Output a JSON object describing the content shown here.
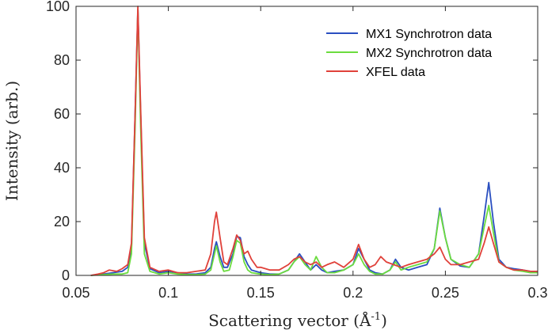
{
  "chart_data": {
    "type": "line",
    "title": "",
    "xlabel": "Scattering vector (Å",
    "xlabel_sup": "-1",
    "xlabel_close": ")",
    "ylabel": "Intensity (arb.)",
    "xlim": [
      0.05,
      0.3
    ],
    "ylim": [
      0,
      100
    ],
    "xticks": [
      0.05,
      0.1,
      0.15,
      0.2,
      0.25,
      0.3
    ],
    "xtick_labels": [
      "0.05",
      "0.1",
      "0.15",
      "0.2",
      "0.25",
      "0.3"
    ],
    "yticks": [
      0,
      20,
      40,
      60,
      80,
      100
    ],
    "ytick_labels": [
      "0",
      "20",
      "40",
      "60",
      "80",
      "100"
    ],
    "legend_position": "top-right",
    "series": [
      {
        "name": "MX1 Synchrotron data",
        "color": "#2a4fc0",
        "points": [
          [
            0.058,
            0
          ],
          [
            0.065,
            0.5
          ],
          [
            0.07,
            1
          ],
          [
            0.075,
            1.5
          ],
          [
            0.078,
            3
          ],
          [
            0.08,
            10
          ],
          [
            0.082,
            60
          ],
          [
            0.0835,
            99
          ],
          [
            0.085,
            60
          ],
          [
            0.087,
            12
          ],
          [
            0.09,
            2.5
          ],
          [
            0.095,
            1
          ],
          [
            0.1,
            1.5
          ],
          [
            0.105,
            1
          ],
          [
            0.11,
            0.5
          ],
          [
            0.115,
            0.5
          ],
          [
            0.12,
            1
          ],
          [
            0.123,
            3
          ],
          [
            0.125,
            10
          ],
          [
            0.126,
            12.5
          ],
          [
            0.128,
            7
          ],
          [
            0.13,
            3
          ],
          [
            0.132,
            3
          ],
          [
            0.135,
            8
          ],
          [
            0.137,
            14.5
          ],
          [
            0.139,
            14
          ],
          [
            0.141,
            7
          ],
          [
            0.143,
            4
          ],
          [
            0.145,
            2
          ],
          [
            0.15,
            1
          ],
          [
            0.155,
            0.5
          ],
          [
            0.16,
            0.5
          ],
          [
            0.165,
            2
          ],
          [
            0.168,
            5
          ],
          [
            0.171,
            8
          ],
          [
            0.174,
            5
          ],
          [
            0.177,
            2
          ],
          [
            0.18,
            4
          ],
          [
            0.183,
            2
          ],
          [
            0.186,
            1
          ],
          [
            0.19,
            1.5
          ],
          [
            0.195,
            2
          ],
          [
            0.2,
            4
          ],
          [
            0.203,
            10
          ],
          [
            0.206,
            6
          ],
          [
            0.209,
            2
          ],
          [
            0.212,
            1
          ],
          [
            0.216,
            0.5
          ],
          [
            0.22,
            2
          ],
          [
            0.223,
            6
          ],
          [
            0.226,
            3
          ],
          [
            0.23,
            2
          ],
          [
            0.235,
            3
          ],
          [
            0.24,
            4
          ],
          [
            0.244,
            10
          ],
          [
            0.247,
            25
          ],
          [
            0.25,
            14
          ],
          [
            0.253,
            6
          ],
          [
            0.258,
            3.5
          ],
          [
            0.263,
            3
          ],
          [
            0.268,
            8
          ],
          [
            0.271,
            22
          ],
          [
            0.2735,
            34.5
          ],
          [
            0.276,
            20
          ],
          [
            0.279,
            6
          ],
          [
            0.283,
            3
          ],
          [
            0.287,
            2.5
          ],
          [
            0.292,
            2
          ],
          [
            0.296,
            1.5
          ],
          [
            0.3,
            1
          ]
        ]
      },
      {
        "name": "MX2 Synchrotron data",
        "color": "#6bdc3e",
        "points": [
          [
            0.058,
            0
          ],
          [
            0.065,
            0.3
          ],
          [
            0.07,
            0.5
          ],
          [
            0.075,
            0.5
          ],
          [
            0.078,
            1
          ],
          [
            0.08,
            8
          ],
          [
            0.082,
            55
          ],
          [
            0.0835,
            99
          ],
          [
            0.085,
            55
          ],
          [
            0.087,
            8
          ],
          [
            0.09,
            1.5
          ],
          [
            0.095,
            0.5
          ],
          [
            0.1,
            1
          ],
          [
            0.105,
            0.5
          ],
          [
            0.11,
            0.3
          ],
          [
            0.115,
            0.3
          ],
          [
            0.12,
            0.5
          ],
          [
            0.123,
            2
          ],
          [
            0.125,
            8
          ],
          [
            0.126,
            11
          ],
          [
            0.128,
            5
          ],
          [
            0.13,
            1.5
          ],
          [
            0.133,
            2
          ],
          [
            0.135,
            7
          ],
          [
            0.137,
            13
          ],
          [
            0.139,
            12
          ],
          [
            0.141,
            5
          ],
          [
            0.143,
            2
          ],
          [
            0.145,
            1
          ],
          [
            0.15,
            0.5
          ],
          [
            0.155,
            0.3
          ],
          [
            0.16,
            0.5
          ],
          [
            0.165,
            2
          ],
          [
            0.168,
            5
          ],
          [
            0.171,
            7
          ],
          [
            0.174,
            4
          ],
          [
            0.177,
            2
          ],
          [
            0.18,
            7
          ],
          [
            0.183,
            3
          ],
          [
            0.186,
            1
          ],
          [
            0.19,
            1
          ],
          [
            0.195,
            2
          ],
          [
            0.2,
            4
          ],
          [
            0.203,
            8
          ],
          [
            0.206,
            4
          ],
          [
            0.209,
            1.5
          ],
          [
            0.212,
            0.5
          ],
          [
            0.216,
            0.5
          ],
          [
            0.22,
            2
          ],
          [
            0.223,
            5
          ],
          [
            0.226,
            2
          ],
          [
            0.23,
            3
          ],
          [
            0.235,
            4
          ],
          [
            0.24,
            5
          ],
          [
            0.244,
            10
          ],
          [
            0.247,
            24
          ],
          [
            0.25,
            14
          ],
          [
            0.253,
            6
          ],
          [
            0.258,
            4
          ],
          [
            0.263,
            3
          ],
          [
            0.268,
            8
          ],
          [
            0.271,
            18
          ],
          [
            0.2735,
            26
          ],
          [
            0.276,
            16
          ],
          [
            0.279,
            5
          ],
          [
            0.283,
            3
          ],
          [
            0.287,
            2
          ],
          [
            0.292,
            1.5
          ],
          [
            0.296,
            1
          ],
          [
            0.3,
            1
          ]
        ]
      },
      {
        "name": "XFEL data",
        "color": "#e0413a",
        "points": [
          [
            0.058,
            0
          ],
          [
            0.062,
            0.5
          ],
          [
            0.065,
            1
          ],
          [
            0.068,
            2
          ],
          [
            0.072,
            1.5
          ],
          [
            0.075,
            2.5
          ],
          [
            0.078,
            4
          ],
          [
            0.08,
            12
          ],
          [
            0.082,
            60
          ],
          [
            0.0835,
            100
          ],
          [
            0.085,
            62
          ],
          [
            0.087,
            14
          ],
          [
            0.09,
            3
          ],
          [
            0.095,
            1.5
          ],
          [
            0.1,
            2
          ],
          [
            0.105,
            1
          ],
          [
            0.11,
            1
          ],
          [
            0.115,
            1.5
          ],
          [
            0.12,
            2
          ],
          [
            0.123,
            8
          ],
          [
            0.125,
            20
          ],
          [
            0.126,
            23.5
          ],
          [
            0.128,
            14
          ],
          [
            0.13,
            5
          ],
          [
            0.132,
            4
          ],
          [
            0.135,
            10
          ],
          [
            0.137,
            15
          ],
          [
            0.139,
            13
          ],
          [
            0.141,
            8
          ],
          [
            0.143,
            9
          ],
          [
            0.145,
            6
          ],
          [
            0.148,
            3
          ],
          [
            0.15,
            3
          ],
          [
            0.155,
            2
          ],
          [
            0.16,
            2
          ],
          [
            0.165,
            4
          ],
          [
            0.168,
            6
          ],
          [
            0.171,
            7
          ],
          [
            0.174,
            5
          ],
          [
            0.177,
            4
          ],
          [
            0.18,
            5
          ],
          [
            0.183,
            3
          ],
          [
            0.186,
            4
          ],
          [
            0.19,
            5
          ],
          [
            0.195,
            3
          ],
          [
            0.2,
            6
          ],
          [
            0.203,
            11.5
          ],
          [
            0.206,
            6
          ],
          [
            0.209,
            3
          ],
          [
            0.212,
            4
          ],
          [
            0.215,
            7
          ],
          [
            0.218,
            5
          ],
          [
            0.222,
            4
          ],
          [
            0.226,
            3
          ],
          [
            0.23,
            4
          ],
          [
            0.235,
            5
          ],
          [
            0.24,
            6
          ],
          [
            0.244,
            8
          ],
          [
            0.247,
            10.5
          ],
          [
            0.25,
            6
          ],
          [
            0.253,
            4
          ],
          [
            0.258,
            4
          ],
          [
            0.263,
            5
          ],
          [
            0.268,
            6
          ],
          [
            0.271,
            12
          ],
          [
            0.2735,
            18
          ],
          [
            0.276,
            12
          ],
          [
            0.279,
            5
          ],
          [
            0.283,
            3
          ],
          [
            0.287,
            2
          ],
          [
            0.292,
            2
          ],
          [
            0.296,
            1.5
          ],
          [
            0.3,
            1.5
          ]
        ]
      }
    ]
  }
}
